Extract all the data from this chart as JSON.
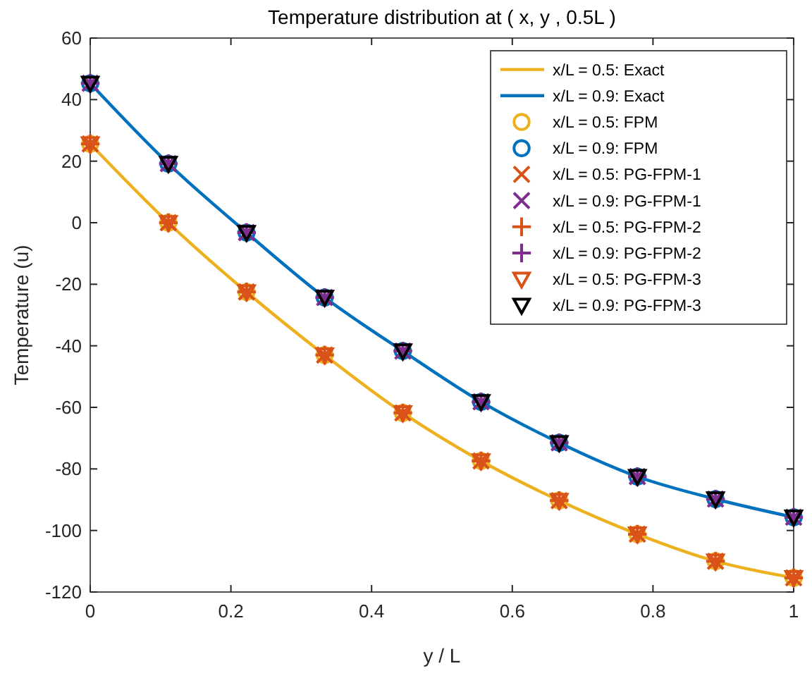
{
  "chart_data": {
    "type": "line",
    "title": "Temperature distribution  at ( x, y , 0.5L )",
    "xlabel": "y / L",
    "ylabel": "Temperature (u)",
    "xlim": [
      0,
      1
    ],
    "xticks": [
      0,
      0.2,
      0.4,
      0.6,
      0.8,
      1
    ],
    "ylim": [
      -120,
      60
    ],
    "yticks": [
      -120,
      -100,
      -80,
      -60,
      -40,
      -20,
      0,
      20,
      40,
      60
    ],
    "grid": false,
    "legend": "top right",
    "series": [
      {
        "name": "x/L = 0.5: Exact",
        "marker": "none",
        "line_style": "solid",
        "color": "#edb120",
        "x": [
          0,
          0.1111,
          0.2222,
          0.3333,
          0.4444,
          0.5556,
          0.6667,
          0.7778,
          0.8889,
          1
        ],
        "values": [
          25.6,
          0,
          -22.5,
          -43,
          -61.8,
          -77.4,
          -90.3,
          -101.2,
          -110,
          -115.4
        ]
      },
      {
        "name": "x/L = 0.9: Exact",
        "marker": "none",
        "line_style": "solid",
        "color": "#0072bd",
        "x": [
          0,
          0.1111,
          0.2222,
          0.3333,
          0.4444,
          0.5556,
          0.6667,
          0.7778,
          0.8889,
          1
        ],
        "values": [
          45.3,
          19.2,
          -3.2,
          -24.3,
          -41.7,
          -58.2,
          -71.5,
          -82.5,
          -89.8,
          -95.7
        ]
      },
      {
        "name": "x/L = 0.5: FPM",
        "type": "scatter",
        "marker": "circle",
        "color": "#edb120",
        "x": [
          0,
          0.1111,
          0.2222,
          0.3333,
          0.4444,
          0.5556,
          0.6667,
          0.7778,
          0.8889,
          1
        ],
        "values": [
          25.6,
          0,
          -22.5,
          -43,
          -61.8,
          -77.4,
          -90.3,
          -101.2,
          -110,
          -115.4
        ]
      },
      {
        "name": "x/L = 0.9: FPM",
        "type": "scatter",
        "marker": "circle",
        "color": "#0072bd",
        "x": [
          0,
          0.1111,
          0.2222,
          0.3333,
          0.4444,
          0.5556,
          0.6667,
          0.7778,
          0.8889,
          1
        ],
        "values": [
          45.3,
          19.2,
          -3.2,
          -24.3,
          -41.7,
          -58.2,
          -71.5,
          -82.5,
          -89.8,
          -95.7
        ]
      },
      {
        "name": "x/L = 0.5: PG-FPM-1",
        "type": "scatter",
        "marker": "x",
        "color": "#d95319",
        "x": [
          0,
          0.1111,
          0.2222,
          0.3333,
          0.4444,
          0.5556,
          0.6667,
          0.7778,
          0.8889,
          1
        ],
        "values": [
          25.6,
          0,
          -22.5,
          -43,
          -61.8,
          -77.4,
          -90.3,
          -101.2,
          -110,
          -115.4
        ]
      },
      {
        "name": "x/L = 0.9: PG-FPM-1",
        "type": "scatter",
        "marker": "x",
        "color": "#7e2f8e",
        "x": [
          0,
          0.1111,
          0.2222,
          0.3333,
          0.4444,
          0.5556,
          0.6667,
          0.7778,
          0.8889,
          1
        ],
        "values": [
          45.3,
          19.2,
          -3.2,
          -24.3,
          -41.7,
          -58.2,
          -71.5,
          -82.5,
          -89.8,
          -95.7
        ]
      },
      {
        "name": "x/L = 0.5: PG-FPM-2",
        "type": "scatter",
        "marker": "cross",
        "color": "#d95319",
        "x": [
          0,
          0.1111,
          0.2222,
          0.3333,
          0.4444,
          0.5556,
          0.6667,
          0.7778,
          0.8889,
          1
        ],
        "values": [
          25.6,
          0,
          -22.5,
          -43,
          -61.8,
          -77.4,
          -90.3,
          -101.2,
          -110,
          -115.4
        ]
      },
      {
        "name": "x/L = 0.9: PG-FPM-2",
        "type": "scatter",
        "marker": "cross",
        "color": "#7e2f8e",
        "x": [
          0,
          0.1111,
          0.2222,
          0.3333,
          0.4444,
          0.5556,
          0.6667,
          0.7778,
          0.8889,
          1
        ],
        "values": [
          45.3,
          19.2,
          -3.2,
          -24.3,
          -41.7,
          -58.2,
          -71.5,
          -82.5,
          -89.8,
          -95.7
        ]
      },
      {
        "name": "x/L = 0.5: PG-FPM-3",
        "type": "scatter",
        "marker": "triangle",
        "color": "#d95319",
        "x": [
          0,
          0.1111,
          0.2222,
          0.3333,
          0.4444,
          0.5556,
          0.6667,
          0.7778,
          0.8889,
          1
        ],
        "values": [
          25.6,
          0,
          -22.5,
          -43,
          -61.8,
          -77.4,
          -90.3,
          -101.2,
          -110,
          -115.4
        ]
      },
      {
        "name": "x/L = 0.9: PG-FPM-3",
        "type": "scatter",
        "marker": "triangle",
        "color": "#000000",
        "x": [
          0,
          0.1111,
          0.2222,
          0.3333,
          0.4444,
          0.5556,
          0.6667,
          0.7778,
          0.8889,
          1
        ],
        "values": [
          45.3,
          19.2,
          -3.2,
          -24.3,
          -41.7,
          -58.2,
          -71.5,
          -82.5,
          -89.8,
          -95.7
        ]
      }
    ]
  }
}
